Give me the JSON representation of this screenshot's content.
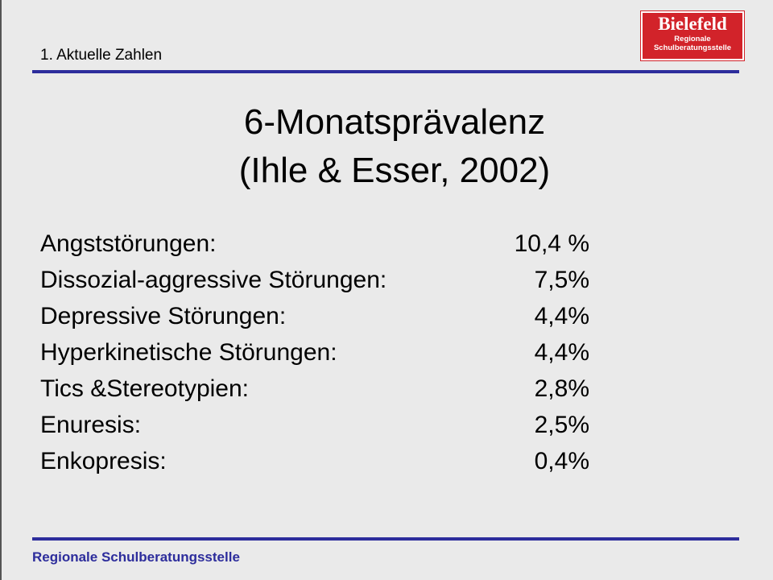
{
  "header": {
    "section": "1. Aktuelle Zahlen",
    "logo_title": "Bielefeld",
    "logo_sub1": "Regionale",
    "logo_sub2": "Schulberatungsstelle"
  },
  "title": {
    "line1": "6-Monatsprävalenz",
    "line2": "(Ihle & Esser, 2002)"
  },
  "items": [
    {
      "label": "Angststörungen:",
      "value": "10,4 %"
    },
    {
      "label": "Dissozial-aggressive Störungen:",
      "value": "7,5%"
    },
    {
      "label": "Depressive Störungen:",
      "value": "4,4%"
    },
    {
      "label": "Hyperkinetische Störungen:",
      "value": "4,4%"
    },
    {
      "label": "Tics &Stereotypien:",
      "value": "2,8%"
    },
    {
      "label": "Enuresis:",
      "value": "2,5%"
    },
    {
      "label": "Enkopresis:",
      "value": "0,4%"
    }
  ],
  "footer": {
    "text": "Regionale Schulberatungsstelle"
  },
  "colors": {
    "rule": "#2d2d9c",
    "logo_bg": "#d2232a",
    "background": "#eaeaea"
  }
}
